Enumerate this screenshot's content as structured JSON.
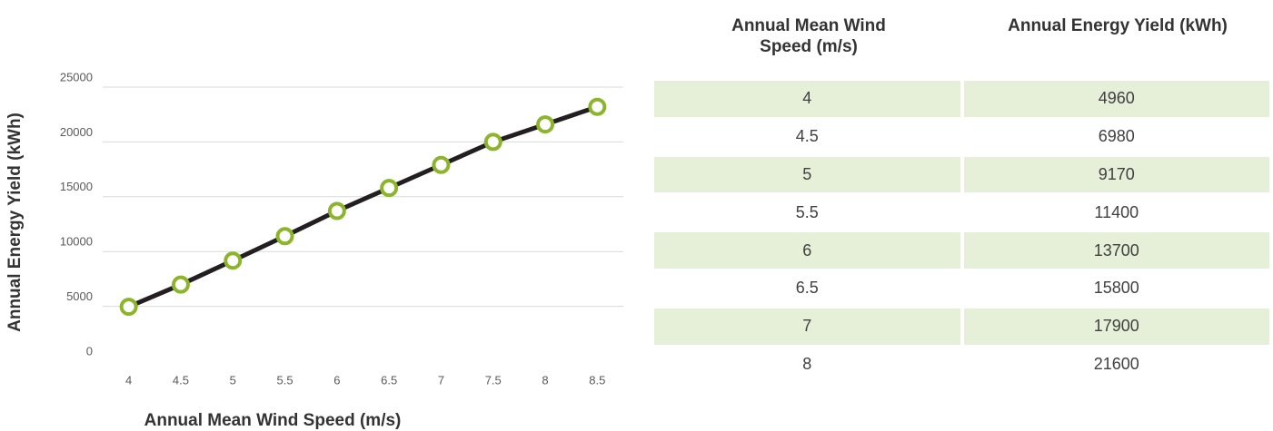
{
  "chart_data": {
    "type": "line",
    "x_label": "Annual Mean Wind Speed (m/s)",
    "y_label": "Annual Energy Yield (kWh)",
    "categories": [
      "4",
      "4.5",
      "5",
      "5.5",
      "6",
      "6.5",
      "7",
      "7.5",
      "8",
      "8.5"
    ],
    "series": [
      {
        "name": "Annual Energy Yield (kWh)",
        "color": "#231f20",
        "marker_color": "#8db52c",
        "values": [
          4960,
          6980,
          9170,
          11400,
          13700,
          15800,
          17900,
          20000,
          21600,
          23200
        ]
      }
    ],
    "ylim": [
      0,
      25000
    ],
    "yticks": [
      0,
      5000,
      10000,
      15000,
      20000,
      25000
    ],
    "grid": true
  },
  "table": {
    "headers": [
      "Annual Mean Wind Speed (m/s)",
      "Annual Energy Yield (kWh)"
    ],
    "rows": [
      [
        4,
        4960
      ],
      [
        4.5,
        6980
      ],
      [
        5,
        9170
      ],
      [
        5.5,
        11400
      ],
      [
        6,
        13700
      ],
      [
        6.5,
        15800
      ],
      [
        7,
        17900
      ],
      [
        8,
        21600
      ]
    ]
  }
}
